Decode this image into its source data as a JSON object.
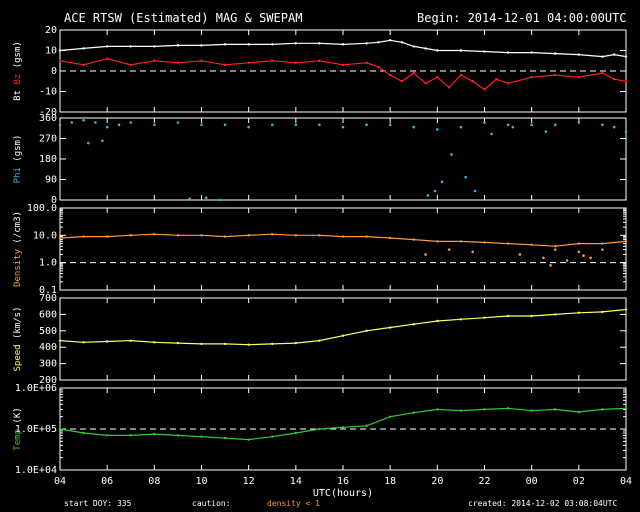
{
  "header": {
    "title": "ACE RTSW (Estimated) MAG & SWEPAM",
    "begin": "Begin: 2014-12-01 04:00:00UTC"
  },
  "footer": {
    "start_doy": "start DOY: 335",
    "caution_label": "caution:",
    "caution_value": "density < 1",
    "created": "created: 2014-12-02 03:08:04UTC"
  },
  "colors": {
    "background": "#000000",
    "foreground": "#ffffff",
    "bt": "#ffffff",
    "bz": "#ff2020",
    "phi": "#3cb4e6",
    "density": "#ff9a3c",
    "speed": "#ffff66",
    "temp": "#33cc33",
    "caution": "#ff9a3c"
  },
  "chart_data": {
    "type": "scatter",
    "xlabel": "UTC(hours)",
    "xlim": [
      4,
      28
    ],
    "x_ticks": [
      "04",
      "06",
      "08",
      "10",
      "12",
      "14",
      "16",
      "18",
      "20",
      "22",
      "00",
      "02",
      "04"
    ],
    "panels": [
      {
        "id": "mag",
        "ylabel_parts": [
          {
            "text": "Bt",
            "color": "#ffffff"
          },
          {
            "text": " Bz",
            "color": "#ff2020"
          },
          {
            "text": " (gsm)",
            "color": "#ffffff"
          }
        ],
        "ylim": [
          -20,
          20
        ],
        "scale": "linear",
        "yticks": [
          {
            "v": 20,
            "label": "20"
          },
          {
            "v": 10,
            "label": "10"
          },
          {
            "v": 0,
            "label": "0"
          },
          {
            "v": -10,
            "label": "-10"
          },
          {
            "v": -20,
            "label": "-20"
          }
        ],
        "ref_lines": [
          0
        ],
        "series": [
          {
            "name": "Bt",
            "color": "#ffffff",
            "style": "line",
            "x": [
              4,
              5,
              6,
              7,
              8,
              9,
              10,
              11,
              12,
              13,
              14,
              15,
              16,
              17,
              17.5,
              18,
              18.5,
              19,
              19.5,
              20,
              21,
              22,
              23,
              24,
              25,
              26,
              27,
              27.5,
              28
            ],
            "y": [
              10,
              11,
              12,
              12,
              12,
              12.5,
              12.5,
              13,
              13,
              13,
              13.5,
              13.5,
              13,
              13.5,
              14,
              15,
              14,
              12,
              11,
              10,
              10,
              9.5,
              9,
              9,
              8.5,
              8,
              7,
              8,
              7
            ]
          },
          {
            "name": "Bz",
            "color": "#ff2020",
            "style": "line",
            "x": [
              4,
              5,
              6,
              7,
              8,
              9,
              10,
              11,
              12,
              13,
              14,
              15,
              16,
              17,
              17.5,
              18,
              18.5,
              19,
              19.5,
              20,
              20.5,
              21,
              21.5,
              22,
              22.5,
              23,
              24,
              25,
              26,
              27,
              27.5,
              28
            ],
            "y": [
              5,
              3,
              6,
              3,
              5,
              4,
              5,
              3,
              4,
              5,
              4,
              5,
              3,
              4,
              2,
              -2,
              -5,
              -1,
              -6,
              -3,
              -8,
              -2,
              -5,
              -9,
              -4,
              -6,
              -3,
              -2,
              -3,
              -1,
              -4,
              -5
            ]
          }
        ]
      },
      {
        "id": "phi",
        "ylabel_parts": [
          {
            "text": "Phi",
            "color": "#3cb4e6"
          },
          {
            "text": " (gsm)",
            "color": "#ffffff"
          }
        ],
        "ylim": [
          0,
          360
        ],
        "scale": "linear",
        "yticks": [
          {
            "v": 360,
            "label": "360"
          },
          {
            "v": 270,
            "label": "270"
          },
          {
            "v": 180,
            "label": "180"
          },
          {
            "v": 90,
            "label": "90"
          },
          {
            "v": 0,
            "label": "0"
          }
        ],
        "ref_lines": [],
        "series": [
          {
            "name": "Phi",
            "color": "#3cb4e6",
            "style": "points",
            "x": [
              4,
              4.5,
              5,
              5.5,
              6,
              6.5,
              7,
              8,
              9,
              10,
              11,
              12,
              13,
              14,
              15,
              16,
              17,
              18,
              19,
              20,
              21,
              22,
              23,
              24,
              25,
              26,
              27,
              27.5,
              28,
              5.2,
              5.8,
              19.6,
              19.9,
              20.2,
              20.6,
              21.2,
              21.6,
              9.5,
              10.2,
              10.8,
              22.3,
              23.2,
              24.6
            ],
            "y": [
              330,
              340,
              350,
              340,
              320,
              330,
              340,
              330,
              340,
              330,
              330,
              320,
              330,
              330,
              330,
              320,
              330,
              330,
              320,
              310,
              320,
              340,
              330,
              330,
              330,
              340,
              330,
              320,
              300,
              250,
              260,
              20,
              40,
              80,
              200,
              100,
              40,
              5,
              10,
              0,
              290,
              320,
              300
            ]
          }
        ]
      },
      {
        "id": "density",
        "ylabel_parts": [
          {
            "text": "Density",
            "color": "#ff9a3c"
          },
          {
            "text": " (/cm3)",
            "color": "#ffffff"
          }
        ],
        "ylim": [
          0.1,
          100
        ],
        "scale": "log",
        "yticks": [
          {
            "v": 100,
            "label": "100.0"
          },
          {
            "v": 10,
            "label": "10.0"
          },
          {
            "v": 1,
            "label": "1.0"
          },
          {
            "v": 0.1,
            "label": "0.1"
          }
        ],
        "ref_lines": [
          1
        ],
        "series": [
          {
            "name": "Density",
            "color": "#ff9a3c",
            "style": "line",
            "x": [
              4,
              5,
              6,
              7,
              8,
              9,
              10,
              11,
              12,
              13,
              14,
              15,
              16,
              17,
              18,
              19,
              20,
              21,
              22,
              23,
              24,
              25,
              26,
              27,
              28
            ],
            "y": [
              8,
              9,
              9,
              10,
              11,
              10,
              10,
              9,
              10,
              11,
              10,
              10,
              9,
              9,
              8,
              7,
              6,
              6,
              5.5,
              5,
              4.5,
              4,
              5,
              5,
              6
            ]
          },
          {
            "name": "Density (scatter)",
            "color": "#ff9a3c",
            "style": "points",
            "x": [
              19.5,
              20.5,
              21.5,
              23.5,
              24.5,
              25,
              25.5,
              26,
              26.5,
              27,
              24.8,
              26.2
            ],
            "y": [
              2,
              3,
              2.5,
              2,
              1.5,
              3,
              1.2,
              2.5,
              1.5,
              3,
              0.8,
              1.8
            ]
          }
        ]
      },
      {
        "id": "speed",
        "ylabel_parts": [
          {
            "text": "Speed",
            "color": "#ffff66"
          },
          {
            "text": " (km/s)",
            "color": "#ffffff"
          }
        ],
        "ylim": [
          200,
          700
        ],
        "scale": "linear",
        "yticks": [
          {
            "v": 700,
            "label": "700"
          },
          {
            "v": 600,
            "label": "600"
          },
          {
            "v": 500,
            "label": "500"
          },
          {
            "v": 400,
            "label": "400"
          },
          {
            "v": 300,
            "label": "300"
          },
          {
            "v": 200,
            "label": "200"
          }
        ],
        "ref_lines": [],
        "series": [
          {
            "name": "Speed",
            "color": "#ffff66",
            "style": "line",
            "x": [
              4,
              5,
              6,
              7,
              8,
              9,
              10,
              11,
              12,
              13,
              14,
              15,
              16,
              17,
              18,
              19,
              20,
              21,
              22,
              23,
              24,
              25,
              26,
              27,
              28
            ],
            "y": [
              440,
              430,
              435,
              440,
              430,
              425,
              420,
              420,
              415,
              420,
              425,
              440,
              470,
              500,
              520,
              540,
              560,
              570,
              580,
              590,
              590,
              600,
              610,
              615,
              630
            ]
          }
        ]
      },
      {
        "id": "temp",
        "ylabel_parts": [
          {
            "text": "Temp",
            "color": "#33cc33"
          },
          {
            "text": " (K)",
            "color": "#ffffff"
          }
        ],
        "ylim": [
          10000,
          1000000
        ],
        "scale": "log",
        "yticks": [
          {
            "v": 1000000,
            "label": "1.0E+06"
          },
          {
            "v": 100000,
            "label": "1.0E+05"
          },
          {
            "v": 10000,
            "label": "1.0E+04"
          }
        ],
        "ref_lines": [
          100000
        ],
        "series": [
          {
            "name": "Temp",
            "color": "#33cc33",
            "style": "line",
            "x": [
              4,
              5,
              6,
              7,
              8,
              9,
              10,
              11,
              12,
              13,
              14,
              15,
              16,
              17,
              18,
              19,
              20,
              21,
              22,
              23,
              24,
              25,
              26,
              27,
              28
            ],
            "y": [
              100000,
              80000,
              70000,
              70000,
              75000,
              70000,
              65000,
              60000,
              55000,
              65000,
              80000,
              100000,
              110000,
              120000,
              200000,
              250000,
              300000,
              280000,
              300000,
              320000,
              280000,
              300000,
              260000,
              300000,
              320000
            ]
          }
        ]
      }
    ]
  }
}
